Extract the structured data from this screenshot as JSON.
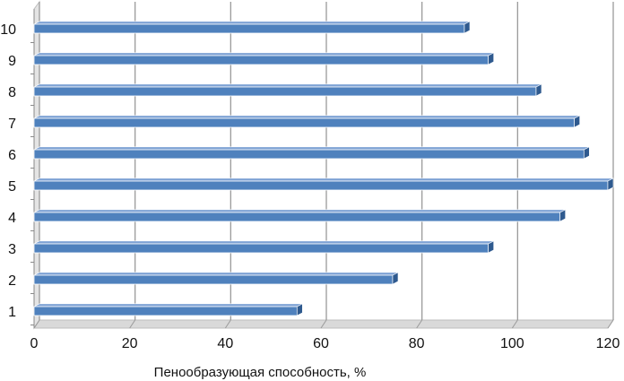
{
  "chart_data": {
    "type": "bar",
    "orientation": "horizontal",
    "categories": [
      "1",
      "2",
      "3",
      "4",
      "5",
      "6",
      "7",
      "8",
      "9",
      "10"
    ],
    "values": [
      55,
      75,
      95,
      110,
      120,
      115,
      113,
      105,
      95,
      90
    ],
    "xlabel": "Пенообразующая способность, %",
    "ylabel": "",
    "xlim": [
      0,
      120
    ],
    "xticks": [
      "0",
      "20",
      "40",
      "60",
      "80",
      "100",
      "120"
    ],
    "grid": true,
    "style": "3d",
    "colors": {
      "bar": "#4f81bd",
      "bar_top": "#7ea2d4",
      "bar_side": "#2f5a8f",
      "grid": "#9a9a9a",
      "wall": "#ffffff",
      "floor": "#d9d9d9"
    }
  }
}
